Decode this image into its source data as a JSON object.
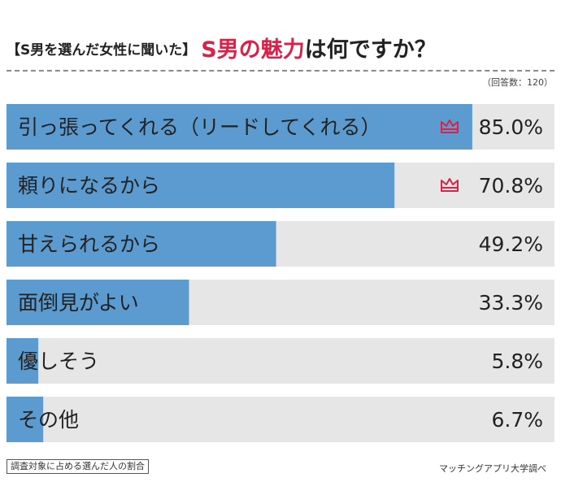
{
  "title": {
    "prefix": "【S男を選んだ女性に聞いた】",
    "accent": "S男の魅力",
    "suffix": "は何ですか？"
  },
  "respondents": "（回答数：120）",
  "footnote": "調査対象に占める選んだ人の割合",
  "source": "マッチングアプリ大学調べ",
  "colors": {
    "bar": "#5b9bd0",
    "track": "#e6e6e6",
    "accent": "#d9214a",
    "crown": "#d9214a"
  },
  "chart_data": {
    "type": "bar",
    "orientation": "horizontal",
    "categories": [
      "引っ張ってくれる（リードしてくれる）",
      "頼りになるから",
      "甘えられるから",
      "面倒見がよい",
      "優しそう",
      "その他"
    ],
    "values": [
      85.0,
      70.8,
      49.2,
      33.3,
      5.8,
      6.7
    ],
    "value_labels": [
      "85.0%",
      "70.8%",
      "49.2%",
      "33.3%",
      "5.8%",
      "6.7%"
    ],
    "crown_icons": [
      true,
      true,
      false,
      false,
      false,
      false
    ],
    "xlim": [
      0,
      100
    ]
  }
}
